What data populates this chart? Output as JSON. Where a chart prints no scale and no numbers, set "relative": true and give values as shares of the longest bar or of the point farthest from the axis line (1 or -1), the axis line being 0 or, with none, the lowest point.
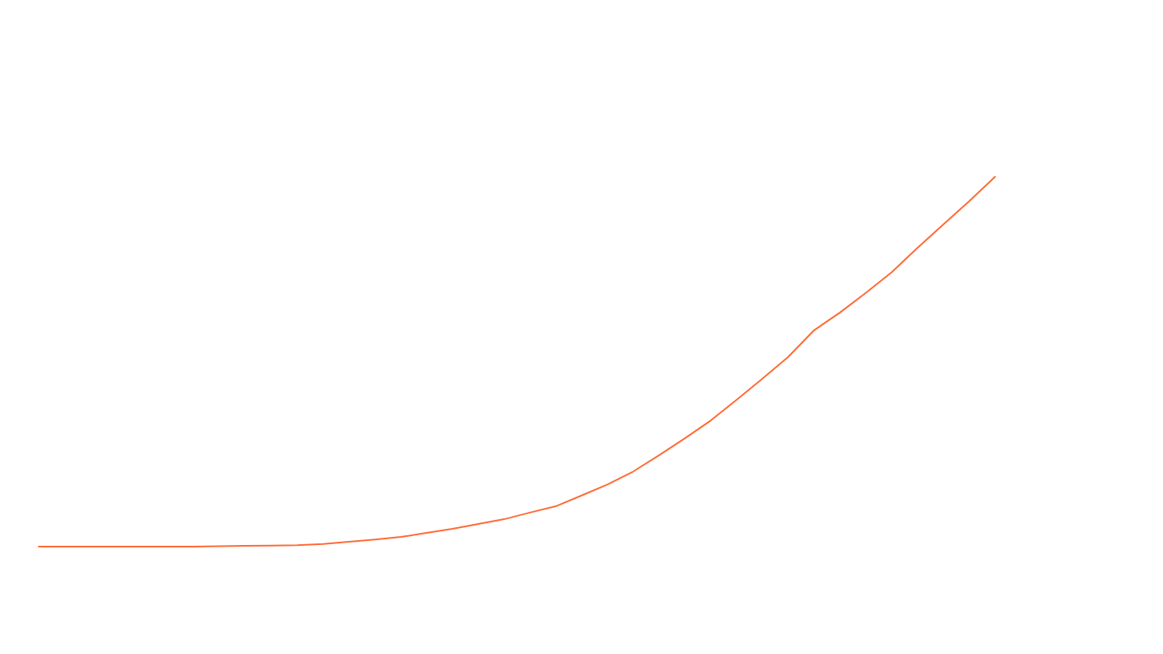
{
  "chart_data": {
    "type": "line",
    "relative": true,
    "categories": [
      null,
      null,
      null,
      null,
      null,
      null,
      null,
      null,
      null,
      null,
      null,
      null,
      null,
      null,
      null,
      null,
      null,
      null,
      null,
      null,
      null,
      null,
      null,
      null,
      null,
      null,
      null,
      null,
      null,
      null,
      null,
      null,
      null,
      null,
      null,
      null,
      null,
      null
    ],
    "series": [
      {
        "color": "#fe6a35",
        "values": [
          0,
          0,
          0,
          0,
          0,
          0,
          0,
          0.001,
          0.002,
          0.003,
          0.004,
          0.007,
          0.013,
          0.019,
          0.026,
          0.037,
          0.048,
          0.061,
          0.074,
          0.092,
          0.109,
          0.138,
          0.168,
          0.203,
          0.247,
          0.293,
          0.341,
          0.397,
          0.454,
          0.513,
          0.585,
          0.633,
          0.686,
          0.742,
          0.808,
          0.871,
          0.934,
          1
        ]
      }
    ]
  }
}
